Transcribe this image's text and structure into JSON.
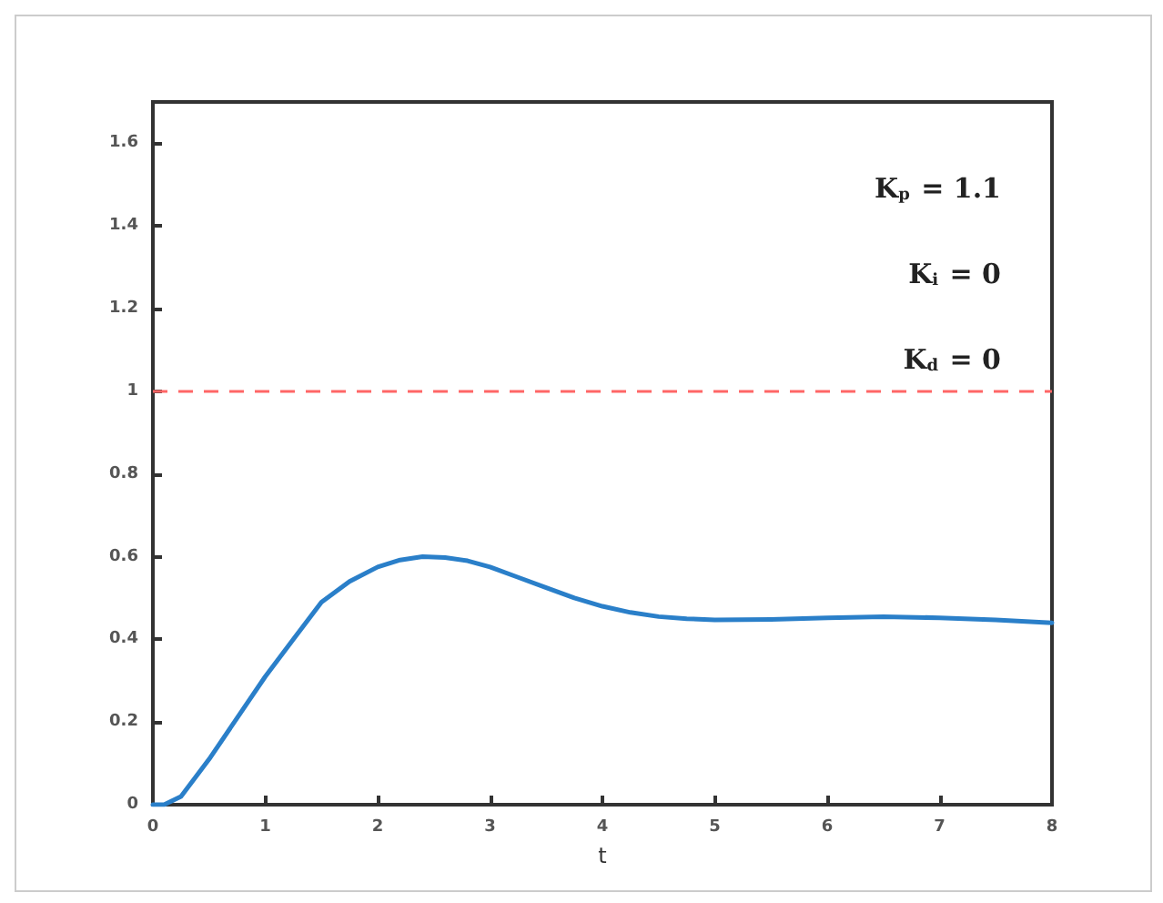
{
  "chart_data": {
    "type": "line",
    "xlabel": "t",
    "x": [
      0,
      0.1,
      0.25,
      0.5,
      0.75,
      1,
      1.25,
      1.5,
      1.75,
      2,
      2.2,
      2.4,
      2.6,
      2.8,
      3,
      3.25,
      3.5,
      3.75,
      4,
      4.25,
      4.5,
      4.75,
      5,
      5.5,
      6,
      6.5,
      7,
      7.5,
      8
    ],
    "series": [
      {
        "color": "#2a7fc9",
        "values": [
          0,
          0,
          0.02,
          0.11,
          0.21,
          0.31,
          0.4,
          0.49,
          0.54,
          0.575,
          0.592,
          0.6,
          0.598,
          0.59,
          0.575,
          0.55,
          0.525,
          0.5,
          0.48,
          0.465,
          0.455,
          0.45,
          0.447,
          0.448,
          0.452,
          0.455,
          0.452,
          0.447,
          0.44
        ]
      }
    ],
    "xlim": [
      0,
      8
    ],
    "xticks": [
      0,
      1,
      2,
      3,
      4,
      5,
      6,
      7,
      8
    ],
    "ylim": [
      0,
      1.7
    ],
    "yticks": [
      0,
      0.2,
      0.4,
      0.6,
      0.8,
      1,
      1.2,
      1.4,
      1.6
    ],
    "ref_lines": [
      {
        "axis": "y",
        "value": 1,
        "color": "#ff6666",
        "line_style": "dashed"
      }
    ],
    "annotations": [
      "K$_{p}$ = 1.1",
      "K$_{i}$ = 0",
      "K$_{d}$ = 0"
    ],
    "grid": false,
    "marker": "none",
    "line_style": "solid"
  }
}
